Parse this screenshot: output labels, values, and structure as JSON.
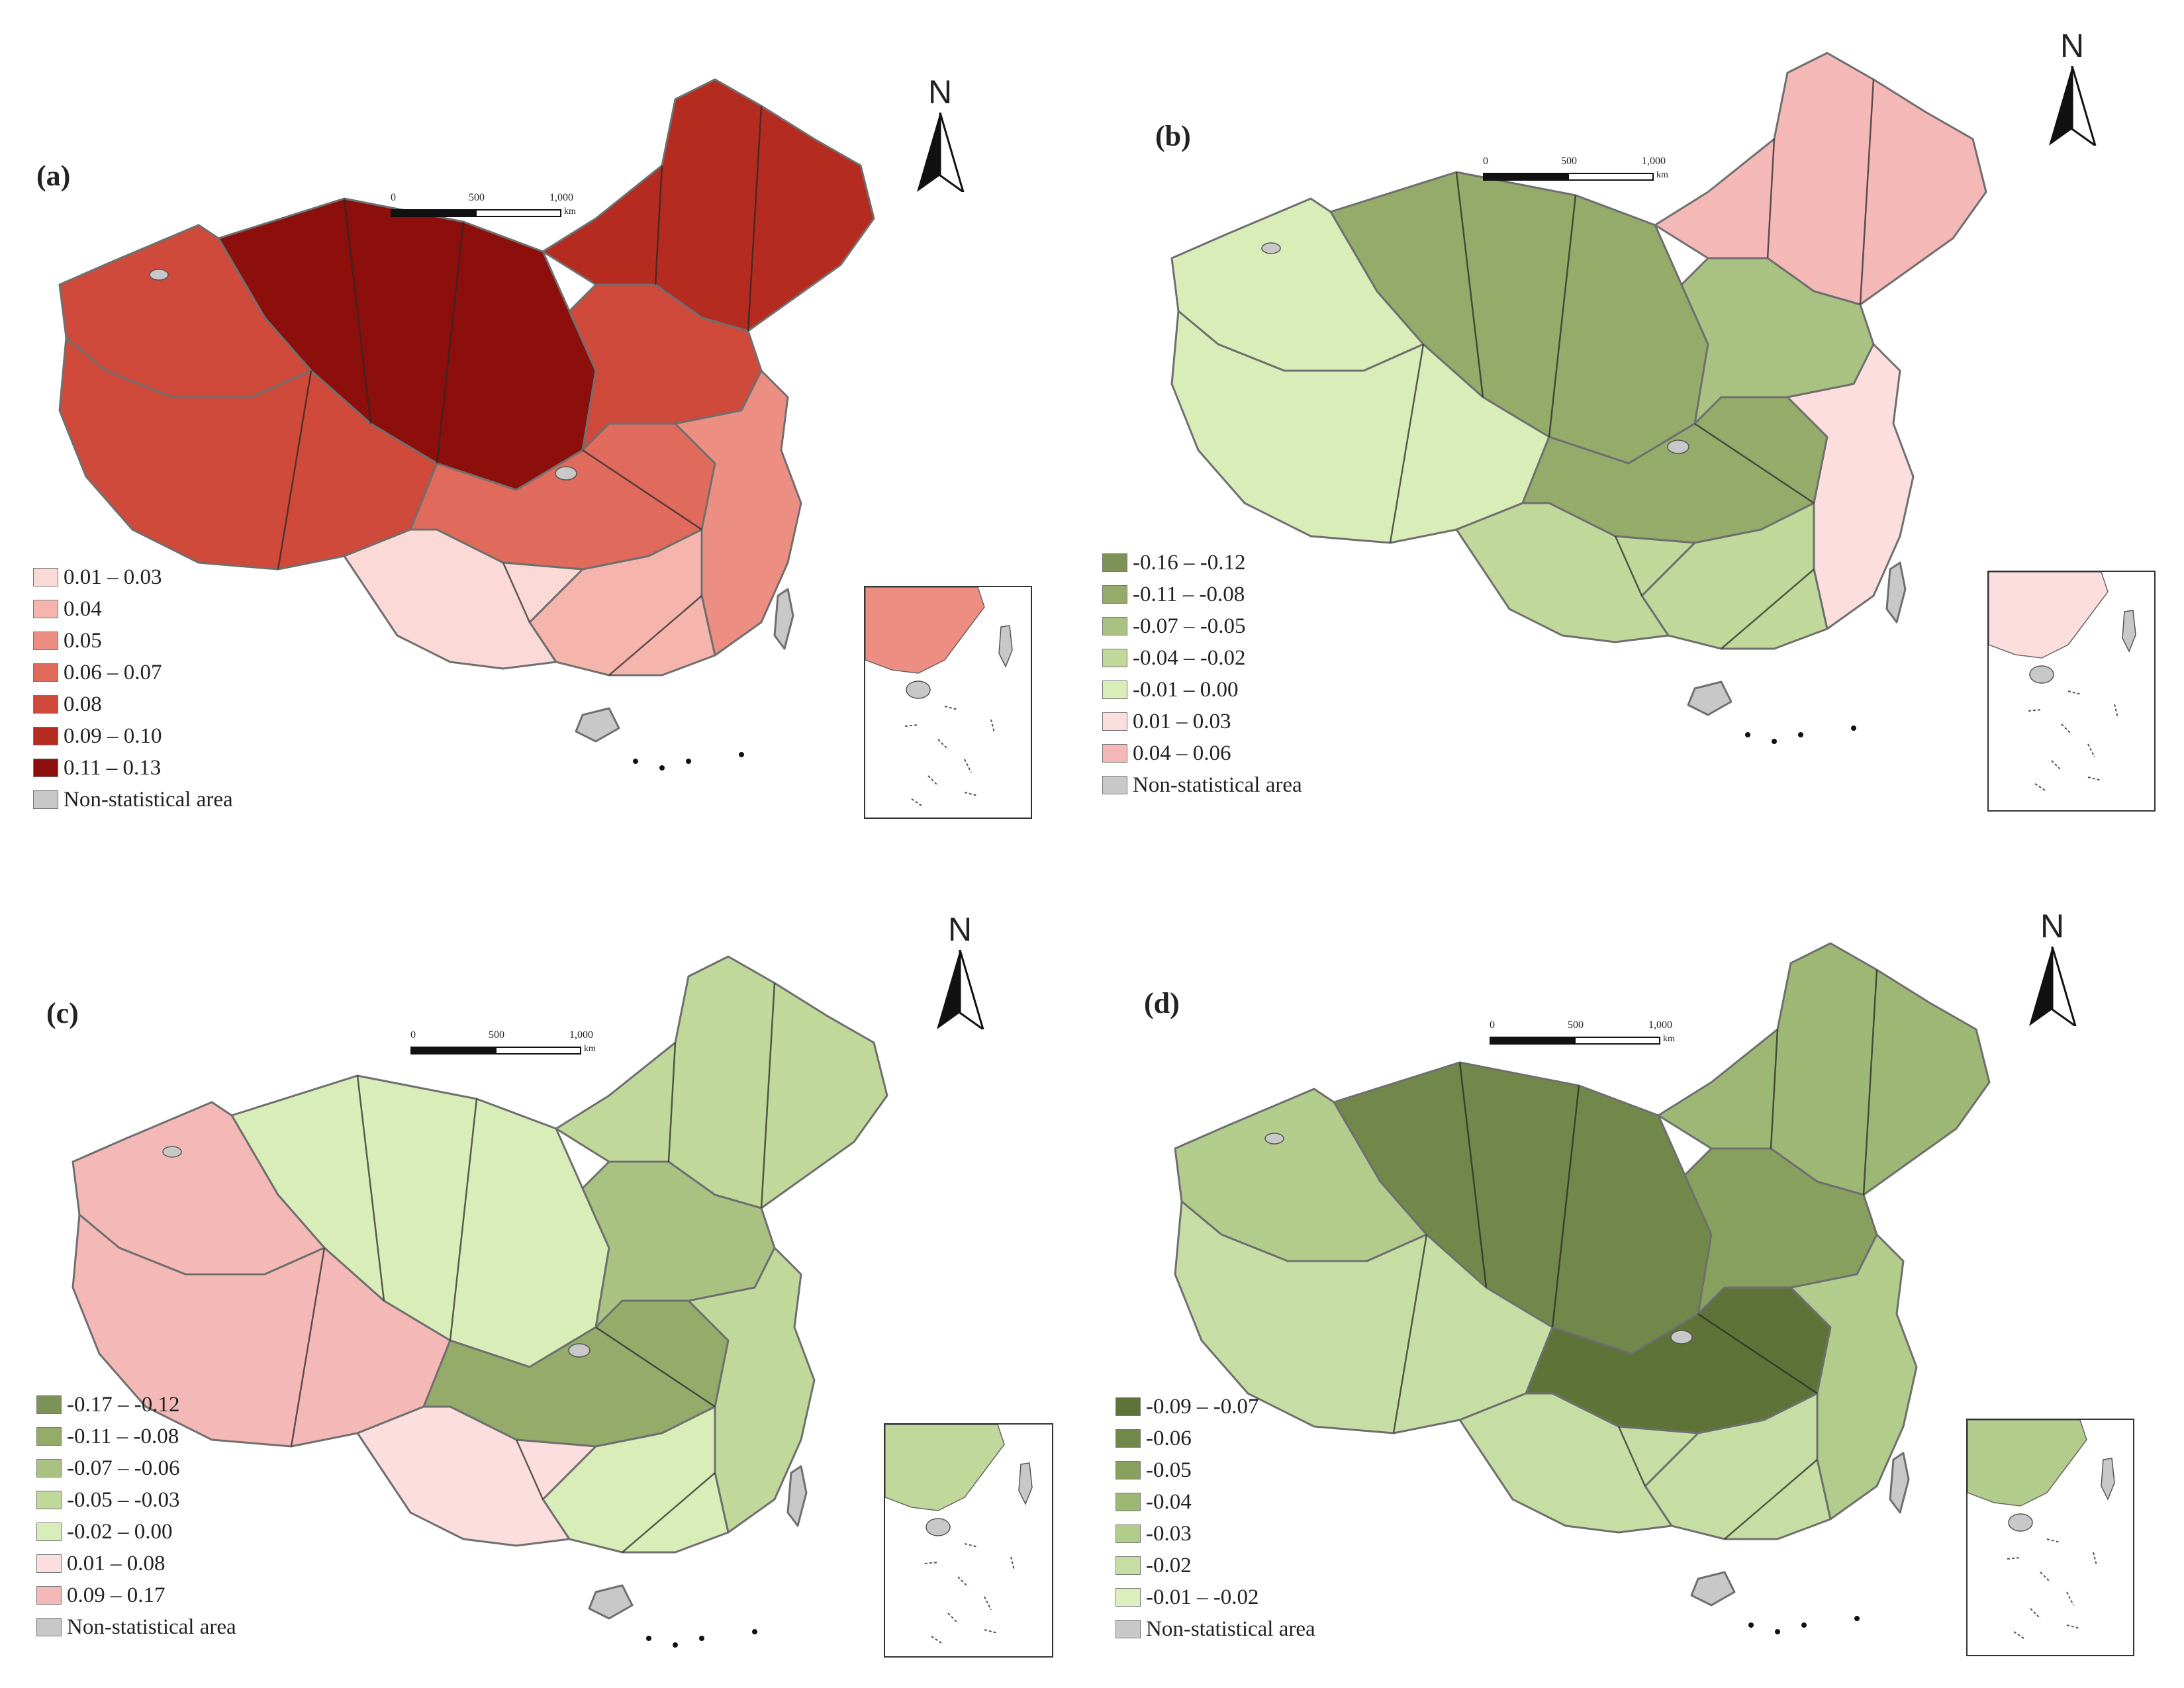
{
  "scale_bar": {
    "labels": [
      "0",
      "500",
      "1,000"
    ],
    "unit": "km"
  },
  "north_label": "N",
  "non_statistical_label": "Non-statistical area",
  "non_statistical_color": "#c8c8c8",
  "panels": [
    {
      "id": "a",
      "label": "(a)",
      "classes": [
        {
          "label": "0.01 – 0.03",
          "color": "#fbd9d6"
        },
        {
          "label": "0.04",
          "color": "#f5b5ad"
        },
        {
          "label": "0.05",
          "color": "#ec8e82"
        },
        {
          "label": "0.06 – 0.07",
          "color": "#e06a5c"
        },
        {
          "label": "0.08",
          "color": "#cf4a3b"
        },
        {
          "label": "0.09 – 0.10",
          "color": "#b52b20"
        },
        {
          "label": "0.11 – 0.13",
          "color": "#8c0f0c"
        }
      ],
      "regions": {
        "northwest": 6,
        "xinjiang_w": 4,
        "tibet": 4,
        "northeast": 5,
        "north": 4,
        "central": 3,
        "east": 2,
        "south": 1,
        "southwest": 0,
        "taiwan": -1,
        "hainan": -1
      }
    },
    {
      "id": "b",
      "label": "(b)",
      "classes": [
        {
          "label": "-0.16 – -0.12",
          "color": "#7d9257"
        },
        {
          "label": "-0.11 – -0.08",
          "color": "#94ab6a"
        },
        {
          "label": "-0.07 – -0.05",
          "color": "#a9c281"
        },
        {
          "label": "-0.04 – -0.02",
          "color": "#c0d89a"
        },
        {
          "label": "-0.01 – 0.00",
          "color": "#d9edb8"
        },
        {
          "label": "0.01 – 0.03",
          "color": "#fbdedd"
        },
        {
          "label": "0.04 – 0.06",
          "color": "#f4b9b6"
        }
      ],
      "regions": {
        "northwest": 1,
        "xinjiang_w": 4,
        "tibet": 4,
        "northeast": 6,
        "north": 2,
        "central": 1,
        "east": 5,
        "south": 3,
        "southwest": 3,
        "taiwan": -1,
        "hainan": -1
      }
    },
    {
      "id": "c",
      "label": "(c)",
      "classes": [
        {
          "label": "-0.17 – -0.12",
          "color": "#7d9257"
        },
        {
          "label": "-0.11 – -0.08",
          "color": "#94ab6a"
        },
        {
          "label": "-0.07 – -0.06",
          "color": "#a9c281"
        },
        {
          "label": "-0.05 – -0.03",
          "color": "#c0d89a"
        },
        {
          "label": "-0.02 – 0.00",
          "color": "#d9edb8"
        },
        {
          "label": "0.01 – 0.08",
          "color": "#fbdedd"
        },
        {
          "label": "0.09 – 0.17",
          "color": "#f4b9b6"
        }
      ],
      "regions": {
        "northwest": 4,
        "xinjiang_w": 6,
        "tibet": 6,
        "northeast": 3,
        "north": 2,
        "central": 1,
        "east": 3,
        "south": 4,
        "southwest": 5,
        "taiwan": -1,
        "hainan": -1
      }
    },
    {
      "id": "d",
      "label": "(d)",
      "classes": [
        {
          "label": "-0.09 – -0.07",
          "color": "#5f7339"
        },
        {
          "label": "-0.06",
          "color": "#72884a"
        },
        {
          "label": "-0.05",
          "color": "#88a05d"
        },
        {
          "label": "-0.04",
          "color": "#9db774"
        },
        {
          "label": "-0.03",
          "color": "#b1cc8b"
        },
        {
          "label": "-0.02",
          "color": "#c6dea4"
        },
        {
          "label": "-0.01 – -0.02",
          "color": "#dcefbd"
        }
      ],
      "regions": {
        "northwest": 1,
        "xinjiang_w": 4,
        "tibet": 5,
        "northeast": 3,
        "north": 2,
        "central": 0,
        "east": 4,
        "south": 5,
        "southwest": 5,
        "taiwan": -1,
        "hainan": -1
      }
    }
  ]
}
